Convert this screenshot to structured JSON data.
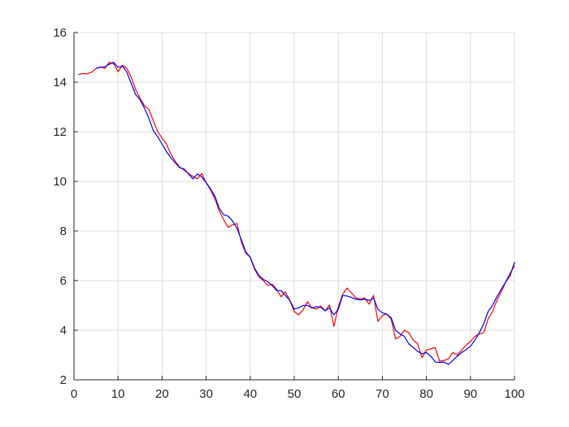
{
  "chart_data": {
    "type": "line",
    "title": "",
    "xlabel": "",
    "ylabel": "",
    "xlim": [
      0,
      100
    ],
    "ylim": [
      2,
      16
    ],
    "xticks": [
      0,
      10,
      20,
      30,
      40,
      50,
      60,
      70,
      80,
      90,
      100
    ],
    "yticks": [
      2,
      4,
      6,
      8,
      10,
      12,
      14,
      16
    ],
    "xtick_labels": [
      "0",
      "10",
      "20",
      "30",
      "40",
      "50",
      "60",
      "70",
      "80",
      "90",
      "100"
    ],
    "ytick_labels": [
      "2",
      "4",
      "6",
      "8",
      "10",
      "12",
      "14",
      "16"
    ],
    "grid": true,
    "legend": "none",
    "series": [
      {
        "color": "#ff0000",
        "x": [
          1,
          2,
          3,
          4,
          5,
          6,
          7,
          8,
          9,
          10,
          11,
          12,
          13,
          14,
          15,
          16,
          17,
          18,
          19,
          20,
          21,
          22,
          23,
          24,
          25,
          26,
          27,
          28,
          29,
          30,
          31,
          32,
          33,
          34,
          35,
          36,
          37,
          38,
          39,
          40,
          41,
          42,
          43,
          44,
          45,
          46,
          47,
          48,
          49,
          50,
          51,
          52,
          53,
          54,
          55,
          56,
          57,
          58,
          59,
          60,
          61,
          62,
          63,
          64,
          65,
          66,
          67,
          68,
          69,
          70,
          71,
          72,
          73,
          74,
          75,
          76,
          77,
          78,
          79,
          80,
          81,
          82,
          83,
          84,
          85,
          86,
          87,
          88,
          89,
          90,
          91,
          92,
          93,
          94,
          95,
          96,
          97,
          98,
          99,
          100
        ],
        "y": [
          14.3,
          14.35,
          14.33,
          14.4,
          14.55,
          14.62,
          14.55,
          14.8,
          14.75,
          14.42,
          14.68,
          14.55,
          14.2,
          13.7,
          13.35,
          13.05,
          12.9,
          12.45,
          12.0,
          11.75,
          11.5,
          11.1,
          10.8,
          10.58,
          10.45,
          10.32,
          10.2,
          10.1,
          10.32,
          9.95,
          9.65,
          9.3,
          8.8,
          8.45,
          8.15,
          8.25,
          8.3,
          7.55,
          7.1,
          6.95,
          6.45,
          6.15,
          6.0,
          5.8,
          5.85,
          5.65,
          5.35,
          5.55,
          5.2,
          4.75,
          4.62,
          4.82,
          5.15,
          4.9,
          4.85,
          4.98,
          4.78,
          5.02,
          4.15,
          4.95,
          5.45,
          5.7,
          5.5,
          5.3,
          5.25,
          5.3,
          5.05,
          5.4,
          4.35,
          4.6,
          4.65,
          4.45,
          3.65,
          3.75,
          4.0,
          3.9,
          3.6,
          3.45,
          2.9,
          3.2,
          3.25,
          3.3,
          2.75,
          2.78,
          2.85,
          3.1,
          3.0,
          3.2,
          3.4,
          3.55,
          3.75,
          3.85,
          3.9,
          4.45,
          4.75,
          5.2,
          5.55,
          5.95,
          6.3,
          6.6
        ]
      },
      {
        "color": "#0000ff",
        "x": [
          5,
          6,
          7,
          8,
          9,
          10,
          11,
          12,
          13,
          14,
          15,
          16,
          17,
          18,
          19,
          20,
          21,
          22,
          23,
          24,
          25,
          26,
          27,
          28,
          29,
          30,
          31,
          32,
          33,
          34,
          35,
          36,
          37,
          38,
          39,
          40,
          41,
          42,
          43,
          44,
          45,
          46,
          47,
          48,
          49,
          50,
          51,
          52,
          53,
          54,
          55,
          56,
          57,
          58,
          59,
          60,
          61,
          62,
          63,
          64,
          65,
          66,
          67,
          68,
          69,
          70,
          71,
          72,
          73,
          74,
          75,
          76,
          77,
          78,
          79,
          80,
          81,
          82,
          83,
          84,
          85,
          86,
          87,
          88,
          89,
          90,
          91,
          92,
          93,
          94,
          95,
          96,
          97,
          98,
          99,
          100
        ],
        "y": [
          14.55,
          14.6,
          14.62,
          14.72,
          14.8,
          14.6,
          14.65,
          14.4,
          13.95,
          13.5,
          13.3,
          12.95,
          12.55,
          12.05,
          11.8,
          11.5,
          11.2,
          10.95,
          10.75,
          10.55,
          10.5,
          10.3,
          10.1,
          10.3,
          10.18,
          9.95,
          9.7,
          9.4,
          8.9,
          8.65,
          8.6,
          8.4,
          8.1,
          7.65,
          7.15,
          6.95,
          6.5,
          6.2,
          6.05,
          5.95,
          5.8,
          5.6,
          5.6,
          5.4,
          5.2,
          4.85,
          4.9,
          5.0,
          5.0,
          4.9,
          4.95,
          4.92,
          4.78,
          4.9,
          4.62,
          4.85,
          5.4,
          5.38,
          5.32,
          5.25,
          5.22,
          5.25,
          5.2,
          5.3,
          4.85,
          4.7,
          4.65,
          4.5,
          4.0,
          3.85,
          3.75,
          3.45,
          3.3,
          3.15,
          3.05,
          3.1,
          2.95,
          2.72,
          2.7,
          2.72,
          2.62,
          2.78,
          2.95,
          3.1,
          3.22,
          3.35,
          3.6,
          3.9,
          4.25,
          4.75,
          5.0,
          5.35,
          5.65,
          5.95,
          6.2,
          6.75
        ]
      }
    ]
  }
}
